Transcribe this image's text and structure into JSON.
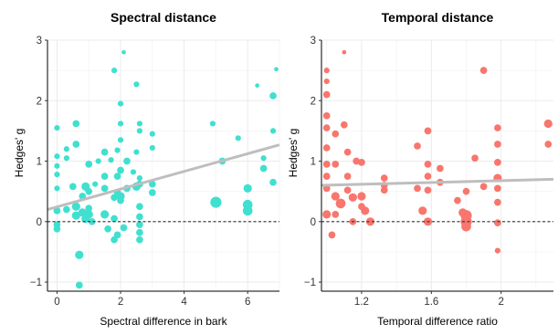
{
  "chart_data": [
    {
      "type": "scatter",
      "title": "Spectral distance",
      "xlabel": "Spectral difference in bark",
      "ylabel": "Hedges' g",
      "xlim": [
        -0.3,
        7.0
      ],
      "ylim": [
        -1.15,
        3.0
      ],
      "xticks": [
        0,
        2,
        4,
        6
      ],
      "yticks": [
        -1,
        0,
        1,
        2,
        3
      ],
      "grid": true,
      "reference_line_y": 0,
      "point_color": "#40E0D0",
      "trend_line": {
        "color": "#BEBEBE",
        "x": [
          -0.3,
          7.0
        ],
        "y": [
          0.2,
          1.27
        ]
      },
      "points": [
        {
          "x": 0.0,
          "y": 0.18,
          "size": 3
        },
        {
          "x": 0.0,
          "y": -0.05,
          "size": 3
        },
        {
          "x": 0.0,
          "y": -0.12,
          "size": 3
        },
        {
          "x": 0.0,
          "y": 0.55,
          "size": 2
        },
        {
          "x": 0.0,
          "y": 0.78,
          "size": 2
        },
        {
          "x": 0.0,
          "y": 0.92,
          "size": 2
        },
        {
          "x": 0.0,
          "y": 1.08,
          "size": 2
        },
        {
          "x": 0.0,
          "y": 1.55,
          "size": 2
        },
        {
          "x": 0.3,
          "y": 1.05,
          "size": 2
        },
        {
          "x": 0.3,
          "y": 1.2,
          "size": 2
        },
        {
          "x": 0.3,
          "y": 0.2,
          "size": 3
        },
        {
          "x": 0.5,
          "y": 0.58,
          "size": 3
        },
        {
          "x": 0.6,
          "y": 0.25,
          "size": 4
        },
        {
          "x": 0.6,
          "y": 0.1,
          "size": 4
        },
        {
          "x": 0.6,
          "y": 1.28,
          "size": 3
        },
        {
          "x": 0.6,
          "y": 1.62,
          "size": 3
        },
        {
          "x": 0.7,
          "y": -0.55,
          "size": 4
        },
        {
          "x": 0.7,
          "y": -1.05,
          "size": 3
        },
        {
          "x": 0.8,
          "y": 0.15,
          "size": 4
        },
        {
          "x": 0.8,
          "y": 0.42,
          "size": 3
        },
        {
          "x": 0.9,
          "y": 0.58,
          "size": 4
        },
        {
          "x": 0.9,
          "y": 0.05,
          "size": 4
        },
        {
          "x": 1.0,
          "y": 0.5,
          "size": 3
        },
        {
          "x": 1.0,
          "y": 0.22,
          "size": 3
        },
        {
          "x": 1.0,
          "y": 0.95,
          "size": 3
        },
        {
          "x": 1.0,
          "y": 0.12,
          "size": 4
        },
        {
          "x": 1.1,
          "y": 0.0,
          "size": 3
        },
        {
          "x": 1.2,
          "y": 0.62,
          "size": 2
        },
        {
          "x": 1.3,
          "y": 1.0,
          "size": 2
        },
        {
          "x": 1.5,
          "y": 1.15,
          "size": 3
        },
        {
          "x": 1.5,
          "y": 0.75,
          "size": 3
        },
        {
          "x": 1.5,
          "y": 0.55,
          "size": 3
        },
        {
          "x": 1.5,
          "y": 0.12,
          "size": 4
        },
        {
          "x": 1.6,
          "y": -0.12,
          "size": 3
        },
        {
          "x": 1.7,
          "y": 1.02,
          "size": 2
        },
        {
          "x": 1.8,
          "y": 0.4,
          "size": 3
        },
        {
          "x": 1.8,
          "y": 0.05,
          "size": 3
        },
        {
          "x": 1.8,
          "y": -0.3,
          "size": 3
        },
        {
          "x": 1.8,
          "y": 2.5,
          "size": 2
        },
        {
          "x": 1.9,
          "y": 1.18,
          "size": 2
        },
        {
          "x": 1.9,
          "y": 0.75,
          "size": 3
        },
        {
          "x": 1.9,
          "y": 0.48,
          "size": 3
        },
        {
          "x": 1.9,
          "y": -0.22,
          "size": 3
        },
        {
          "x": 2.0,
          "y": 1.95,
          "size": 2
        },
        {
          "x": 2.0,
          "y": 1.35,
          "size": 2
        },
        {
          "x": 2.0,
          "y": 1.62,
          "size": 2
        },
        {
          "x": 2.0,
          "y": 0.85,
          "size": 3
        },
        {
          "x": 2.0,
          "y": 0.35,
          "size": 3
        },
        {
          "x": 2.0,
          "y": 0.42,
          "size": 4
        },
        {
          "x": 2.1,
          "y": -0.1,
          "size": 3
        },
        {
          "x": 2.1,
          "y": 2.8,
          "size": 1
        },
        {
          "x": 2.2,
          "y": 0.55,
          "size": 3
        },
        {
          "x": 2.2,
          "y": 1.0,
          "size": 3
        },
        {
          "x": 2.4,
          "y": 0.82,
          "size": 2
        },
        {
          "x": 2.5,
          "y": 2.27,
          "size": 2
        },
        {
          "x": 2.5,
          "y": 1.15,
          "size": 2
        },
        {
          "x": 2.5,
          "y": 0.58,
          "size": 4
        },
        {
          "x": 2.6,
          "y": 0.62,
          "size": 3
        },
        {
          "x": 2.6,
          "y": 0.25,
          "size": 3
        },
        {
          "x": 2.6,
          "y": 0.08,
          "size": 3
        },
        {
          "x": 2.6,
          "y": -0.05,
          "size": 3
        },
        {
          "x": 2.6,
          "y": -0.18,
          "size": 3
        },
        {
          "x": 2.6,
          "y": 1.5,
          "size": 2
        },
        {
          "x": 2.6,
          "y": 1.62,
          "size": 2
        },
        {
          "x": 2.6,
          "y": 0.72,
          "size": 2
        },
        {
          "x": 2.6,
          "y": -0.3,
          "size": 3
        },
        {
          "x": 3.0,
          "y": 1.45,
          "size": 2
        },
        {
          "x": 3.0,
          "y": 1.22,
          "size": 2
        },
        {
          "x": 3.0,
          "y": 0.48,
          "size": 3
        },
        {
          "x": 3.0,
          "y": 0.62,
          "size": 3
        },
        {
          "x": 4.9,
          "y": 1.62,
          "size": 2
        },
        {
          "x": 5.0,
          "y": 0.32,
          "size": 6
        },
        {
          "x": 5.2,
          "y": 1.0,
          "size": 3
        },
        {
          "x": 5.7,
          "y": 1.38,
          "size": 2
        },
        {
          "x": 6.0,
          "y": 0.55,
          "size": 4
        },
        {
          "x": 6.0,
          "y": 0.28,
          "size": 5
        },
        {
          "x": 6.0,
          "y": 0.18,
          "size": 5
        },
        {
          "x": 6.3,
          "y": 2.25,
          "size": 1
        },
        {
          "x": 6.5,
          "y": 0.88,
          "size": 3
        },
        {
          "x": 6.5,
          "y": 1.05,
          "size": 2
        },
        {
          "x": 6.8,
          "y": 2.08,
          "size": 3
        },
        {
          "x": 6.8,
          "y": 1.5,
          "size": 2
        },
        {
          "x": 6.8,
          "y": 0.65,
          "size": 3
        },
        {
          "x": 6.9,
          "y": 2.52,
          "size": 1
        }
      ]
    },
    {
      "type": "scatter",
      "title": "Temporal distance",
      "xlabel": "Temporal difference ratio",
      "ylabel": "Hedges' g",
      "xlim": [
        0.97,
        2.3
      ],
      "ylim": [
        -1.15,
        3.0
      ],
      "xticks": [
        1.2,
        1.6,
        2.0
      ],
      "yticks": [
        -1,
        0,
        1,
        2,
        3
      ],
      "grid": true,
      "reference_line_y": 0,
      "point_color": "#F8766D",
      "trend_line": {
        "color": "#BEBEBE",
        "x": [
          0.97,
          2.3
        ],
        "y": [
          0.6,
          0.7
        ]
      },
      "points": [
        {
          "x": 1.0,
          "y": 2.5,
          "size": 2
        },
        {
          "x": 1.0,
          "y": 2.32,
          "size": 2
        },
        {
          "x": 1.0,
          "y": 2.1,
          "size": 3
        },
        {
          "x": 1.0,
          "y": 1.75,
          "size": 3
        },
        {
          "x": 1.0,
          "y": 1.55,
          "size": 3
        },
        {
          "x": 1.0,
          "y": 1.22,
          "size": 3
        },
        {
          "x": 1.0,
          "y": 0.95,
          "size": 3
        },
        {
          "x": 1.0,
          "y": 0.75,
          "size": 3
        },
        {
          "x": 1.0,
          "y": 0.55,
          "size": 3
        },
        {
          "x": 1.0,
          "y": 0.12,
          "size": 4
        },
        {
          "x": 1.03,
          "y": -0.22,
          "size": 3
        },
        {
          "x": 1.05,
          "y": 1.45,
          "size": 3
        },
        {
          "x": 1.05,
          "y": 0.95,
          "size": 3
        },
        {
          "x": 1.05,
          "y": 0.42,
          "size": 4
        },
        {
          "x": 1.05,
          "y": 0.12,
          "size": 3
        },
        {
          "x": 1.08,
          "y": 0.3,
          "size": 5
        },
        {
          "x": 1.1,
          "y": 2.8,
          "size": 1
        },
        {
          "x": 1.1,
          "y": 1.6,
          "size": 3
        },
        {
          "x": 1.12,
          "y": 1.15,
          "size": 3
        },
        {
          "x": 1.12,
          "y": 0.75,
          "size": 3
        },
        {
          "x": 1.12,
          "y": 0.52,
          "size": 3
        },
        {
          "x": 1.15,
          "y": 0.0,
          "size": 3
        },
        {
          "x": 1.15,
          "y": 0.4,
          "size": 4
        },
        {
          "x": 1.17,
          "y": 1.0,
          "size": 3
        },
        {
          "x": 1.2,
          "y": 0.98,
          "size": 3
        },
        {
          "x": 1.2,
          "y": 0.42,
          "size": 4
        },
        {
          "x": 1.2,
          "y": 0.25,
          "size": 3
        },
        {
          "x": 1.22,
          "y": 0.18,
          "size": 4
        },
        {
          "x": 1.25,
          "y": 0.0,
          "size": 4
        },
        {
          "x": 1.33,
          "y": 0.72,
          "size": 3
        },
        {
          "x": 1.33,
          "y": 0.6,
          "size": 3
        },
        {
          "x": 1.33,
          "y": 0.52,
          "size": 3
        },
        {
          "x": 1.52,
          "y": 1.25,
          "size": 3
        },
        {
          "x": 1.52,
          "y": 0.55,
          "size": 3
        },
        {
          "x": 1.55,
          "y": 0.18,
          "size": 4
        },
        {
          "x": 1.58,
          "y": 1.5,
          "size": 3
        },
        {
          "x": 1.58,
          "y": 0.95,
          "size": 3
        },
        {
          "x": 1.58,
          "y": 0.75,
          "size": 3
        },
        {
          "x": 1.58,
          "y": 0.52,
          "size": 3
        },
        {
          "x": 1.58,
          "y": 0.0,
          "size": 4
        },
        {
          "x": 1.65,
          "y": 0.88,
          "size": 3
        },
        {
          "x": 1.65,
          "y": 0.65,
          "size": 3
        },
        {
          "x": 1.75,
          "y": 0.35,
          "size": 3
        },
        {
          "x": 1.78,
          "y": 0.15,
          "size": 4
        },
        {
          "x": 1.8,
          "y": 0.1,
          "size": 6
        },
        {
          "x": 1.8,
          "y": -0.08,
          "size": 5
        },
        {
          "x": 1.8,
          "y": 0.0,
          "size": 6
        },
        {
          "x": 1.8,
          "y": 0.5,
          "size": 3
        },
        {
          "x": 1.85,
          "y": 1.05,
          "size": 3
        },
        {
          "x": 1.9,
          "y": 2.5,
          "size": 3
        },
        {
          "x": 1.9,
          "y": 0.58,
          "size": 3
        },
        {
          "x": 1.98,
          "y": 1.55,
          "size": 3
        },
        {
          "x": 1.98,
          "y": 1.28,
          "size": 3
        },
        {
          "x": 1.98,
          "y": 0.98,
          "size": 3
        },
        {
          "x": 1.98,
          "y": 0.72,
          "size": 4
        },
        {
          "x": 1.98,
          "y": 0.55,
          "size": 3
        },
        {
          "x": 1.98,
          "y": 0.32,
          "size": 3
        },
        {
          "x": 1.98,
          "y": -0.02,
          "size": 3
        },
        {
          "x": 1.98,
          "y": -0.48,
          "size": 2
        },
        {
          "x": 2.27,
          "y": 1.62,
          "size": 4
        },
        {
          "x": 2.27,
          "y": 1.28,
          "size": 3
        }
      ]
    }
  ]
}
